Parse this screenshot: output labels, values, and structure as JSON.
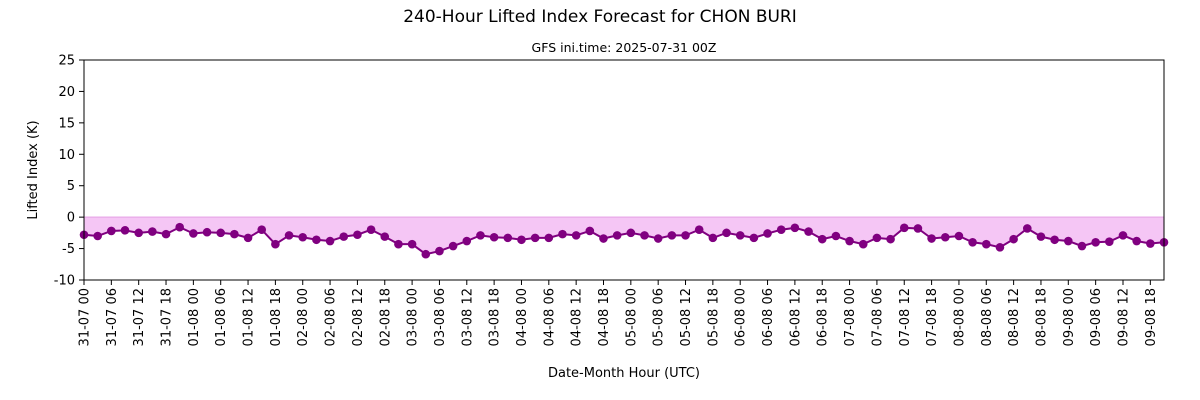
{
  "chart_data": {
    "type": "line",
    "title": "240-Hour Lifted Index Forecast for CHON BURI",
    "subtitle": "GFS ini.time: 2025-07-31 00Z",
    "xlabel": "Date-Month Hour (UTC)",
    "ylabel": "Lifted Index (K)",
    "ylim": [
      -10,
      25
    ],
    "yticks": [
      -10,
      -5,
      0,
      5,
      10,
      15,
      20,
      25
    ],
    "xticks": [
      "31-07 00",
      "31-07 06",
      "31-07 12",
      "31-07 18",
      "01-08 00",
      "01-08 06",
      "01-08 12",
      "01-08 18",
      "02-08 00",
      "02-08 06",
      "02-08 12",
      "02-08 18",
      "03-08 00",
      "03-08 06",
      "03-08 12",
      "03-08 18",
      "04-08 00",
      "04-08 06",
      "04-08 12",
      "04-08 18",
      "05-08 00",
      "05-08 06",
      "05-08 12",
      "05-08 18",
      "06-08 00",
      "06-08 06",
      "06-08 12",
      "06-08 18",
      "07-08 00",
      "07-08 06",
      "07-08 12",
      "07-08 18",
      "08-08 00",
      "08-08 06",
      "08-08 12",
      "08-08 18",
      "09-08 00",
      "09-08 06",
      "09-08 12",
      "09-08 18"
    ],
    "x_step_hours": 3,
    "grid": false,
    "fill_below_zero": true,
    "colors": {
      "line": "#800080",
      "fill": "#f5c6f5",
      "zero_line": "#e8a8e8"
    },
    "series": [
      {
        "values": [
          -2.8,
          -3.0,
          -2.2,
          -2.1,
          -2.5,
          -2.3,
          -2.7,
          -1.6,
          -2.6,
          -2.4,
          -2.5,
          -2.7,
          -3.3,
          -2.0,
          -4.3,
          -2.9,
          -3.2,
          -3.6,
          -3.8,
          -3.1,
          -2.8,
          -2.0,
          -3.1,
          -4.3,
          -4.3,
          -5.9,
          -5.4,
          -4.6,
          -3.8,
          -2.9,
          -3.2,
          -3.3,
          -3.6,
          -3.3,
          -3.3,
          -2.7,
          -2.9,
          -2.2,
          -3.4,
          -2.9,
          -2.5,
          -2.9,
          -3.4,
          -2.9,
          -2.9,
          -2.0,
          -3.3,
          -2.5,
          -2.9,
          -3.3,
          -2.6,
          -2.0,
          -1.7,
          -2.3,
          -3.5,
          -3.0,
          -3.8,
          -4.3,
          -3.3,
          -3.5,
          -1.7,
          -1.8,
          -3.4,
          -3.2,
          -3.0,
          -4.0,
          -4.3,
          -4.8,
          -3.5,
          -1.8,
          -3.1,
          -3.6,
          -3.8,
          -4.6,
          -4.0,
          -3.9,
          -2.9,
          -3.8,
          -4.2,
          -4.0
        ]
      }
    ]
  }
}
